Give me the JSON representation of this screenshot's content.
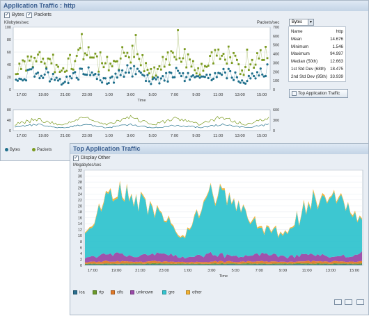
{
  "app_traffic": {
    "title": "Application Traffic : http",
    "bytes_checkbox": "Bytes",
    "packets_checkbox": "Packets",
    "left_unit": "Kilobytes/sec",
    "right_unit": "Packets/sec",
    "time_label": "Time",
    "metric_select": "Bytes",
    "stats": [
      {
        "name": "Name",
        "value": "http"
      },
      {
        "name": "Mean",
        "value": "14.676"
      },
      {
        "name": "Minimum",
        "value": "1.546"
      },
      {
        "name": "Maximum",
        "value": "94.997"
      },
      {
        "name": "Median (50th)",
        "value": "12.663"
      },
      {
        "name": "1st Std Dev (68th)",
        "value": "18.475"
      },
      {
        "name": "2nd Std Dev (95th)",
        "value": "33.939"
      }
    ],
    "top_app_button": "Top Application Traffic",
    "legend": [
      {
        "name": "Bytes",
        "color": "#1f6f8b"
      },
      {
        "name": "Packets",
        "color": "#7a9a1f"
      }
    ],
    "x_ticks": [
      "17:00",
      "19:00",
      "21:00",
      "23:00",
      "1:00",
      "3:00",
      "5:00",
      "7:00",
      "9:00",
      "11:00",
      "13:00",
      "15:00"
    ],
    "y_left_ticks": [
      "0",
      "20",
      "40",
      "60",
      "80",
      "100"
    ],
    "y_right_ticks": [
      "0",
      "100",
      "200",
      "300",
      "400",
      "500",
      "600",
      "700"
    ],
    "overview_y_left_ticks": [
      "0",
      "40",
      "80"
    ],
    "overview_y_right_ticks": [
      "0",
      "300",
      "600"
    ]
  },
  "top_app_traffic": {
    "title": "Top Application Traffic",
    "display_other_checkbox": "Display Other",
    "unit": "Megabytes/sec",
    "time_label": "Time",
    "x_ticks": [
      "17:00",
      "19:00",
      "21:00",
      "23:00",
      "1:00",
      "3:00",
      "5:00",
      "7:00",
      "9:00",
      "11:00",
      "13:00",
      "15:00"
    ],
    "y_ticks": [
      "0",
      "2",
      "4",
      "6",
      "8",
      "10",
      "12",
      "14",
      "16",
      "18",
      "20",
      "22",
      "24",
      "26",
      "28",
      "30",
      "32"
    ],
    "legend": [
      {
        "name": "ica",
        "color": "#2a6f8f"
      },
      {
        "name": "rtp",
        "color": "#6b9a2a"
      },
      {
        "name": "cifs",
        "color": "#e07a2a"
      },
      {
        "name": "unknown",
        "color": "#9a4aa8"
      },
      {
        "name": "gre",
        "color": "#33c4cf"
      },
      {
        "name": "other",
        "color": "#f2b233"
      }
    ]
  },
  "chart_data": [
    {
      "type": "scatter",
      "title": "Application Traffic : http",
      "xlabel": "Time",
      "ylabel": "Kilobytes/sec",
      "y2label": "Packets/sec",
      "ylim": [
        0,
        100
      ],
      "y2lim": [
        0,
        700
      ],
      "x": [
        "17:00",
        "19:00",
        "21:00",
        "23:00",
        "1:00",
        "3:00",
        "5:00",
        "7:00",
        "9:00",
        "11:00",
        "13:00",
        "15:00"
      ],
      "series": [
        {
          "name": "Bytes",
          "values": [
            15,
            30,
            12,
            28,
            14,
            30,
            13,
            25,
            15,
            28,
            14,
            30
          ]
        },
        {
          "name": "Packets",
          "values": [
            30,
            55,
            25,
            60,
            28,
            62,
            27,
            60,
            30,
            65,
            28,
            60
          ]
        }
      ]
    },
    {
      "type": "area",
      "title": "Top Application Traffic",
      "xlabel": "Time",
      "ylabel": "Megabytes/sec",
      "ylim": [
        0,
        32
      ],
      "x": [
        "17:00",
        "19:00",
        "21:00",
        "23:00",
        "1:00",
        "3:00",
        "5:00",
        "7:00",
        "9:00",
        "11:00",
        "13:00",
        "15:00"
      ],
      "series": [
        {
          "name": "ica",
          "values": [
            0.3,
            0.3,
            0.3,
            0.3,
            0.3,
            0.3,
            0.3,
            0.3,
            0.3,
            0.3,
            0.3,
            0.3
          ]
        },
        {
          "name": "rtp",
          "values": [
            0.3,
            0.3,
            0.3,
            0.3,
            0.3,
            0.3,
            0.3,
            0.3,
            0.3,
            0.3,
            0.3,
            0.3
          ]
        },
        {
          "name": "cifs",
          "values": [
            0.5,
            0.8,
            0.6,
            0.7,
            0.5,
            0.8,
            0.6,
            0.7,
            0.5,
            0.8,
            0.6,
            0.7
          ]
        },
        {
          "name": "unknown",
          "values": [
            1.5,
            2.5,
            1.8,
            2.6,
            1.5,
            2.6,
            1.7,
            2.5,
            1.6,
            2.4,
            1.7,
            2.5
          ]
        },
        {
          "name": "gre",
          "values": [
            8,
            19,
            20,
            12,
            7,
            19,
            18,
            8,
            7,
            18,
            19,
            10
          ]
        },
        {
          "name": "other",
          "values": [
            0.4,
            0.6,
            0.5,
            0.5,
            0.4,
            0.6,
            0.5,
            0.5,
            0.4,
            0.6,
            0.5,
            0.5
          ]
        }
      ]
    }
  ]
}
